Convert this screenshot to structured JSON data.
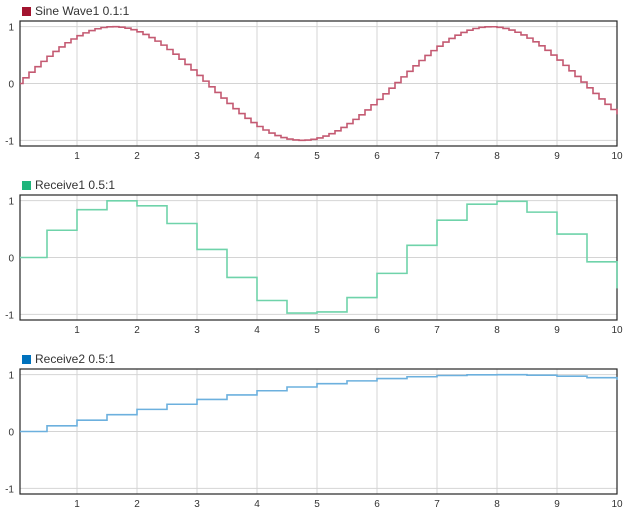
{
  "chart_data": [
    {
      "type": "line",
      "step": "zero-order-hold",
      "legend": "Sine Wave1 0.1:1",
      "legend_color": "#a2142f",
      "line_color": "#c45a72",
      "xlim": [
        0.05,
        10
      ],
      "ylim": [
        -1.1,
        1.1
      ],
      "xticks": [
        1,
        2,
        3,
        4,
        5,
        6,
        7,
        8,
        9,
        10
      ],
      "yticks": [
        1,
        0,
        -1
      ],
      "grid": true,
      "x_start": 0,
      "x_step": 0.1,
      "values": [
        0,
        0.0998,
        0.1987,
        0.2955,
        0.3894,
        0.4794,
        0.5646,
        0.6442,
        0.7174,
        0.7833,
        0.8415,
        0.8912,
        0.932,
        0.9636,
        0.9854,
        0.9975,
        0.9996,
        0.9917,
        0.9738,
        0.9463,
        0.9093,
        0.8632,
        0.8085,
        0.7457,
        0.6755,
        0.5985,
        0.5155,
        0.4274,
        0.335,
        0.2392,
        0.1411,
        0.0416,
        -0.0584,
        -0.1577,
        -0.2555,
        -0.3508,
        -0.4425,
        -0.5298,
        -0.6119,
        -0.6878,
        -0.7568,
        -0.8183,
        -0.8716,
        -0.9162,
        -0.9516,
        -0.9775,
        -0.9937,
        -0.9999,
        -0.9962,
        -0.9825,
        -0.9589,
        -0.9258,
        -0.8835,
        -0.8323,
        -0.7728,
        -0.7055,
        -0.6313,
        -0.5507,
        -0.4646,
        -0.3739,
        -0.2794,
        -0.1822,
        -0.0831,
        0.0168,
        0.1165,
        0.2151,
        0.3115,
        0.4048,
        0.4941,
        0.5784,
        0.657,
        0.729,
        0.7937,
        0.8504,
        0.8987,
        0.938,
        0.9679,
        0.9882,
        0.9985,
        0.9989,
        0.9894,
        0.9699,
        0.9407,
        0.9022,
        0.8546,
        0.7985,
        0.7344,
        0.663,
        0.5849,
        0.501,
        0.4121,
        0.3191,
        0.2229,
        0.1245,
        0.0248,
        -0.0752,
        -0.1743,
        -0.2718,
        -0.3665,
        -0.4575,
        -0.544
      ]
    },
    {
      "type": "line",
      "step": "zero-order-hold",
      "legend": "Receive1 0.5:1",
      "legend_color": "#1fb57c",
      "line_color": "#6fd3aa",
      "xlim": [
        0.05,
        10
      ],
      "ylim": [
        -1.1,
        1.1
      ],
      "xticks": [
        1,
        2,
        3,
        4,
        5,
        6,
        7,
        8,
        9,
        10
      ],
      "yticks": [
        1,
        0,
        -1
      ],
      "grid": true,
      "x_start": 0,
      "x_step": 0.5,
      "values": [
        0,
        0.4794,
        0.8415,
        0.9975,
        0.9093,
        0.5985,
        0.1411,
        -0.3508,
        -0.7568,
        -0.9775,
        -0.9589,
        -0.7055,
        -0.2794,
        0.2151,
        0.657,
        0.938,
        0.9894,
        0.7985,
        0.4121,
        -0.0752,
        -0.544
      ]
    },
    {
      "type": "line",
      "step": "zero-order-hold",
      "legend": "Receive2 0.5:1",
      "legend_color": "#0072bd",
      "line_color": "#6cb0de",
      "xlim": [
        0.05,
        10
      ],
      "ylim": [
        -1.1,
        1.1
      ],
      "xticks": [
        1,
        2,
        3,
        4,
        5,
        6,
        7,
        8,
        9,
        10
      ],
      "yticks": [
        1,
        0,
        -1
      ],
      "grid": true,
      "x_start": 0,
      "x_step": 0.5,
      "values": [
        0,
        0.0998,
        0.1987,
        0.2955,
        0.3894,
        0.4794,
        0.5646,
        0.6442,
        0.7174,
        0.7833,
        0.8415,
        0.8912,
        0.932,
        0.9636,
        0.9854,
        0.9975,
        0.9996,
        0.9917,
        0.9738,
        0.9463,
        0.9093
      ]
    }
  ]
}
